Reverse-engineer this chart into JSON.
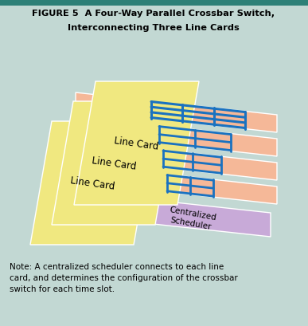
{
  "title_line1": "FIGURE 5  A Four-Way Parallel Crossbar Switch,",
  "title_line2": "Interconnecting Three Line Cards",
  "bg_color": "#c2d8d3",
  "line_card_color": "#f0e880",
  "switch_color": "#f5b898",
  "scheduler_color": "#c8aad8",
  "crossbar_color": "#1a72c0",
  "note_text": "Note: A centralized scheduler connects to each line\ncard, and determines the configuration of the crossbar\nswitch for each time slot.",
  "line_card_label": "Line Card",
  "scheduler_label": "Centralized\nScheduler",
  "title_color": "#000000",
  "edge_color": "#ffffff"
}
